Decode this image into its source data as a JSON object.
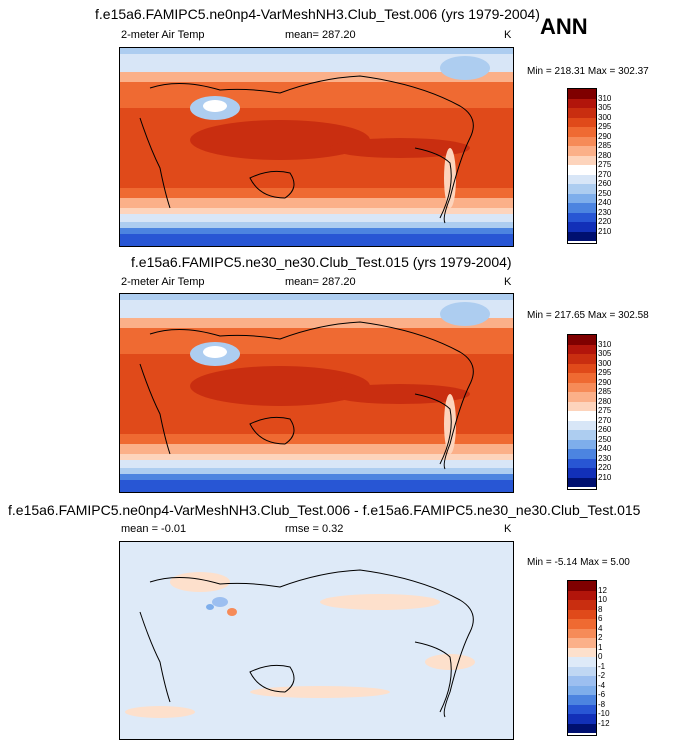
{
  "season": "ANN",
  "panels": [
    {
      "title": "f.e15a6.FAMIPC5.ne0np4-VarMeshNH3.Club_Test.006 (yrs 1979-2004)",
      "left_label": "2-meter Air Temp",
      "center_label": "mean= 287.20",
      "units": "K",
      "minmax": "Min = 218.31 Max = 302.37"
    },
    {
      "title": "f.e15a6.FAMIPC5.ne30_ne30.Club_Test.015 (yrs 1979-2004)",
      "left_label": "2-meter Air Temp",
      "center_label": "mean= 287.20",
      "units": "K",
      "minmax": "Min = 217.65 Max = 302.58"
    },
    {
      "title": "f.e15a6.FAMIPC5.ne0np4-VarMeshNH3.Club_Test.006 - f.e15a6.FAMIPC5.ne30_ne30.Club_Test.015",
      "left_label": "mean =  -0.01",
      "center_label": "rmse =   0.32",
      "units": "K",
      "minmax": "Min =  -5.14 Max =   5.00"
    }
  ],
  "colorbars": {
    "temperature": {
      "labels": [
        "310",
        "305",
        "300",
        "295",
        "290",
        "285",
        "280",
        "275",
        "270",
        "260",
        "250",
        "240",
        "230",
        "220",
        "210"
      ],
      "colors": [
        "#7f0000",
        "#b2150b",
        "#c92e10",
        "#e04a1a",
        "#ef6a32",
        "#f68b58",
        "#fbb089",
        "#fdd4bc",
        "#ffffff",
        "#d8e6f7",
        "#adcdf0",
        "#7eaeeb",
        "#4c84e0",
        "#2856d4",
        "#1230b8",
        "#001070"
      ]
    },
    "difference": {
      "labels": [
        "12",
        "10",
        "8",
        "6",
        "4",
        "2",
        "1",
        "0",
        "-1",
        "-2",
        "-4",
        "-6",
        "-8",
        "-10",
        "-12"
      ],
      "colors": [
        "#7f0000",
        "#b2150b",
        "#c92e10",
        "#e04a1a",
        "#ef6a32",
        "#f68b58",
        "#fbb089",
        "#fde0cc",
        "#deeaf8",
        "#c0d7f3",
        "#9cbff0",
        "#7eaeeb",
        "#4c84e0",
        "#2856d4",
        "#1230b8",
        "#001070"
      ]
    }
  }
}
